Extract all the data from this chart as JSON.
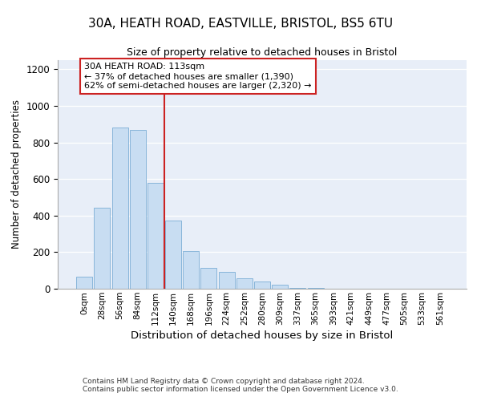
{
  "title_line1": "30A, HEATH ROAD, EASTVILLE, BRISTOL, BS5 6TU",
  "title_line2": "Size of property relative to detached houses in Bristol",
  "xlabel": "Distribution of detached houses by size in Bristol",
  "ylabel": "Number of detached properties",
  "bar_labels": [
    "0sqm",
    "28sqm",
    "56sqm",
    "84sqm",
    "112sqm",
    "140sqm",
    "168sqm",
    "196sqm",
    "224sqm",
    "252sqm",
    "280sqm",
    "309sqm",
    "337sqm",
    "365sqm",
    "393sqm",
    "421sqm",
    "449sqm",
    "477sqm",
    "505sqm",
    "533sqm",
    "561sqm"
  ],
  "bar_values": [
    65,
    445,
    880,
    870,
    580,
    375,
    205,
    115,
    90,
    55,
    40,
    20,
    5,
    5,
    2,
    2,
    1,
    1,
    1,
    1,
    1
  ],
  "bar_color": "#c8ddf2",
  "bar_edge_color": "#7badd6",
  "vline_color": "#cc2222",
  "ylim": [
    0,
    1250
  ],
  "yticks": [
    0,
    200,
    400,
    600,
    800,
    1000,
    1200
  ],
  "bg_color": "#e8eef8",
  "property_label": "30A HEATH ROAD: 113sqm",
  "annotation_line1": "← 37% of detached houses are smaller (1,390)",
  "annotation_line2": "62% of semi-detached houses are larger (2,320) →",
  "footer_line1": "Contains HM Land Registry data © Crown copyright and database right 2024.",
  "footer_line2": "Contains public sector information licensed under the Open Government Licence v3.0.",
  "vline_x": 4.5
}
